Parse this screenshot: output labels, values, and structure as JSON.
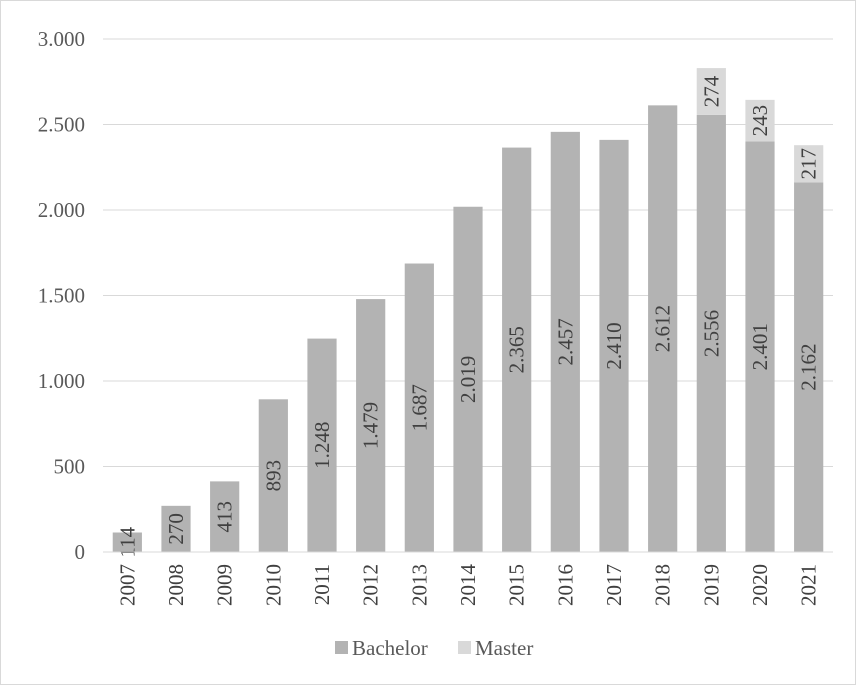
{
  "chart_data": {
    "type": "bar",
    "stacked": true,
    "categories": [
      "2007",
      "2008",
      "2009",
      "2010",
      "2011",
      "2012",
      "2013",
      "2014",
      "2015",
      "2016",
      "2017",
      "2018",
      "2019",
      "2020",
      "2021"
    ],
    "series": [
      {
        "name": "Bachelor",
        "color": "#b3b3b3",
        "values": [
          114,
          270,
          413,
          893,
          1248,
          1479,
          1687,
          2019,
          2365,
          2457,
          2410,
          2612,
          2556,
          2401,
          2162
        ],
        "labels": [
          "114",
          "270",
          "413",
          "893",
          "1.248",
          "1.479",
          "1.687",
          "2.019",
          "2.365",
          "2.457",
          "2.410",
          "2.612",
          "2.556",
          "2.401",
          "2.162"
        ]
      },
      {
        "name": "Master",
        "color": "#d9d9d9",
        "values": [
          0,
          0,
          0,
          0,
          0,
          0,
          0,
          0,
          0,
          0,
          0,
          0,
          274,
          243,
          217
        ],
        "labels": [
          "",
          "",
          "",
          "",
          "",
          "",
          "",
          "",
          "",
          "",
          "",
          "",
          "274",
          "243",
          "217"
        ]
      }
    ],
    "yticks": [
      0,
      500,
      1000,
      1500,
      2000,
      2500,
      3000
    ],
    "ytick_labels": [
      "0",
      "500",
      "1.000",
      "1.500",
      "2.000",
      "2.500",
      "3.000"
    ],
    "ylim": [
      0,
      3000
    ],
    "grid": true,
    "legend_position": "bottom"
  }
}
